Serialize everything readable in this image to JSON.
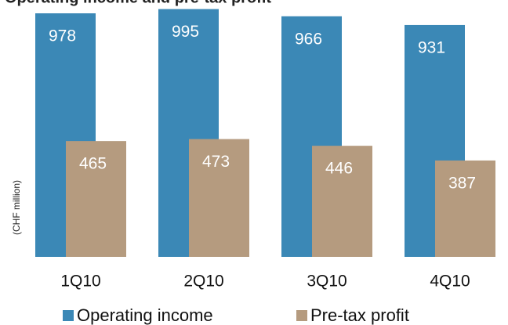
{
  "chart_data": {
    "type": "bar",
    "title": "Operating income and pre-tax profit",
    "y_label": "(CHF million)",
    "categories": [
      "1Q10",
      "2Q10",
      "3Q10",
      "4Q10"
    ],
    "series": [
      {
        "name": "Operating income",
        "color": "#3b88b6",
        "values": [
          978,
          995,
          966,
          931
        ]
      },
      {
        "name": "Pre-tax profit",
        "color": "#b59b7f",
        "values": [
          465,
          473,
          446,
          387
        ]
      }
    ]
  }
}
